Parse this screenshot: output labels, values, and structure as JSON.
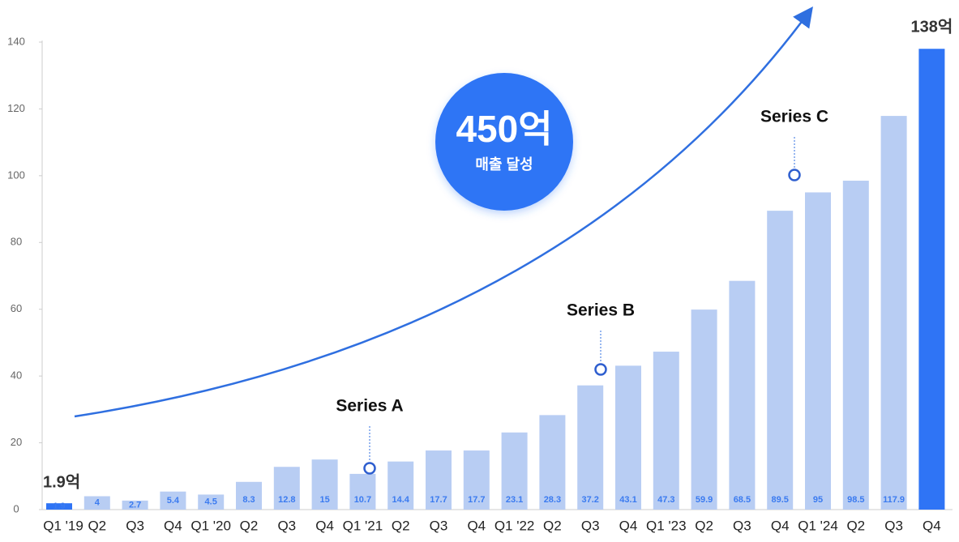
{
  "chart_data": {
    "type": "bar",
    "categories": [
      "Q1 '19",
      "Q2",
      "Q3",
      "Q4",
      "Q1 '20",
      "Q2",
      "Q3",
      "Q4",
      "Q1 '21",
      "Q2",
      "Q3",
      "Q4",
      "Q1 '22",
      "Q2",
      "Q3",
      "Q4",
      "Q1 '23",
      "Q2",
      "Q3",
      "Q4",
      "Q1 '24",
      "Q2",
      "Q3",
      "Q4"
    ],
    "values": [
      1.9,
      4,
      2.7,
      5.4,
      4.5,
      8.3,
      12.8,
      15,
      10.7,
      14.4,
      17.7,
      17.7,
      23.1,
      28.3,
      37.2,
      43.1,
      47.3,
      59.9,
      68.5,
      89.5,
      95,
      98.5,
      117.9,
      138
    ],
    "color": "#b8cdf3",
    "highlight_color": "#2f74f5",
    "start_label": "1.9억",
    "end_label": "138억",
    "ylim": [
      0,
      140
    ],
    "yticks": [
      0,
      20,
      40,
      60,
      80,
      100,
      120,
      140
    ],
    "grid": false,
    "annotations": [
      "Series A",
      "Series B",
      "Series C"
    ],
    "badge": {
      "title": "450억",
      "subtitle": "매출 달성"
    }
  }
}
